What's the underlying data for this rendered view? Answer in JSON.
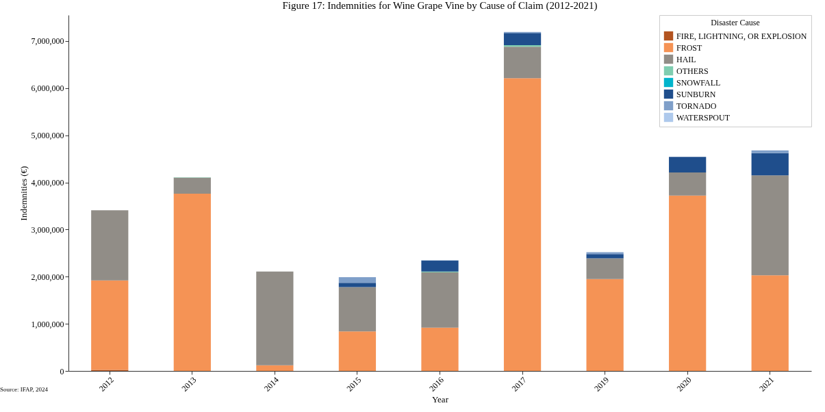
{
  "chart_data": {
    "type": "bar",
    "title": "Figure 17: Indemnities for Wine Grape Vine by Cause of Claim (2012-2021)",
    "xlabel": "Year",
    "ylabel": "Indemnities (€)",
    "legend_title": "Disaster Cause",
    "annotations": [
      "Source: IFAP, 2024"
    ],
    "categories": [
      "2012",
      "2013",
      "2014",
      "2015",
      "2016",
      "2017",
      "2019",
      "2020",
      "2021"
    ],
    "stacked": true,
    "grid": false,
    "legend": "top right",
    "ylim": [
      0,
      7550000
    ],
    "yticks": [
      {
        "value": 0,
        "label": "0"
      },
      {
        "value": 1000000,
        "label": "1,000,000"
      },
      {
        "value": 2000000,
        "label": "2,000,000"
      },
      {
        "value": 3000000,
        "label": "3,000,000"
      },
      {
        "value": 4000000,
        "label": "4,000,000"
      },
      {
        "value": 5000000,
        "label": "5,000,000"
      },
      {
        "value": 6000000,
        "label": "6,000,000"
      },
      {
        "value": 7000000,
        "label": "7,000,000"
      }
    ],
    "series": [
      {
        "name": "FIRE, LIGHTNING, OR EXPLOSION",
        "color": "#b35420",
        "values": [
          20000,
          0,
          0,
          0,
          0,
          0,
          0,
          0,
          0
        ]
      },
      {
        "name": "FROST",
        "color": "#f59355",
        "values": [
          1900000,
          3760000,
          120000,
          840000,
          920000,
          6210000,
          1950000,
          3720000,
          2030000
        ]
      },
      {
        "name": "HAIL",
        "color": "#918d87",
        "values": [
          1490000,
          340000,
          1990000,
          940000,
          1170000,
          670000,
          440000,
          490000,
          2120000
        ]
      },
      {
        "name": "OTHERS",
        "color": "#7fcdb0",
        "values": [
          0,
          10000,
          0,
          0,
          20000,
          30000,
          0,
          0,
          0
        ]
      },
      {
        "name": "SNOWFALL",
        "color": "#00b4cc",
        "values": [
          0,
          0,
          0,
          0,
          0,
          0,
          0,
          0,
          0
        ]
      },
      {
        "name": "SUNBURN",
        "color": "#1f4e8c",
        "values": [
          0,
          0,
          0,
          90000,
          230000,
          260000,
          90000,
          330000,
          470000
        ]
      },
      {
        "name": "TORNADO",
        "color": "#7f9fc9",
        "values": [
          0,
          0,
          0,
          120000,
          10000,
          20000,
          40000,
          null,
          60000
        ]
      },
      {
        "name": "WATERSPOUT",
        "color": "#aec9ec",
        "values": [
          0,
          0,
          0,
          0,
          0,
          0,
          0,
          0,
          0
        ]
      }
    ]
  }
}
